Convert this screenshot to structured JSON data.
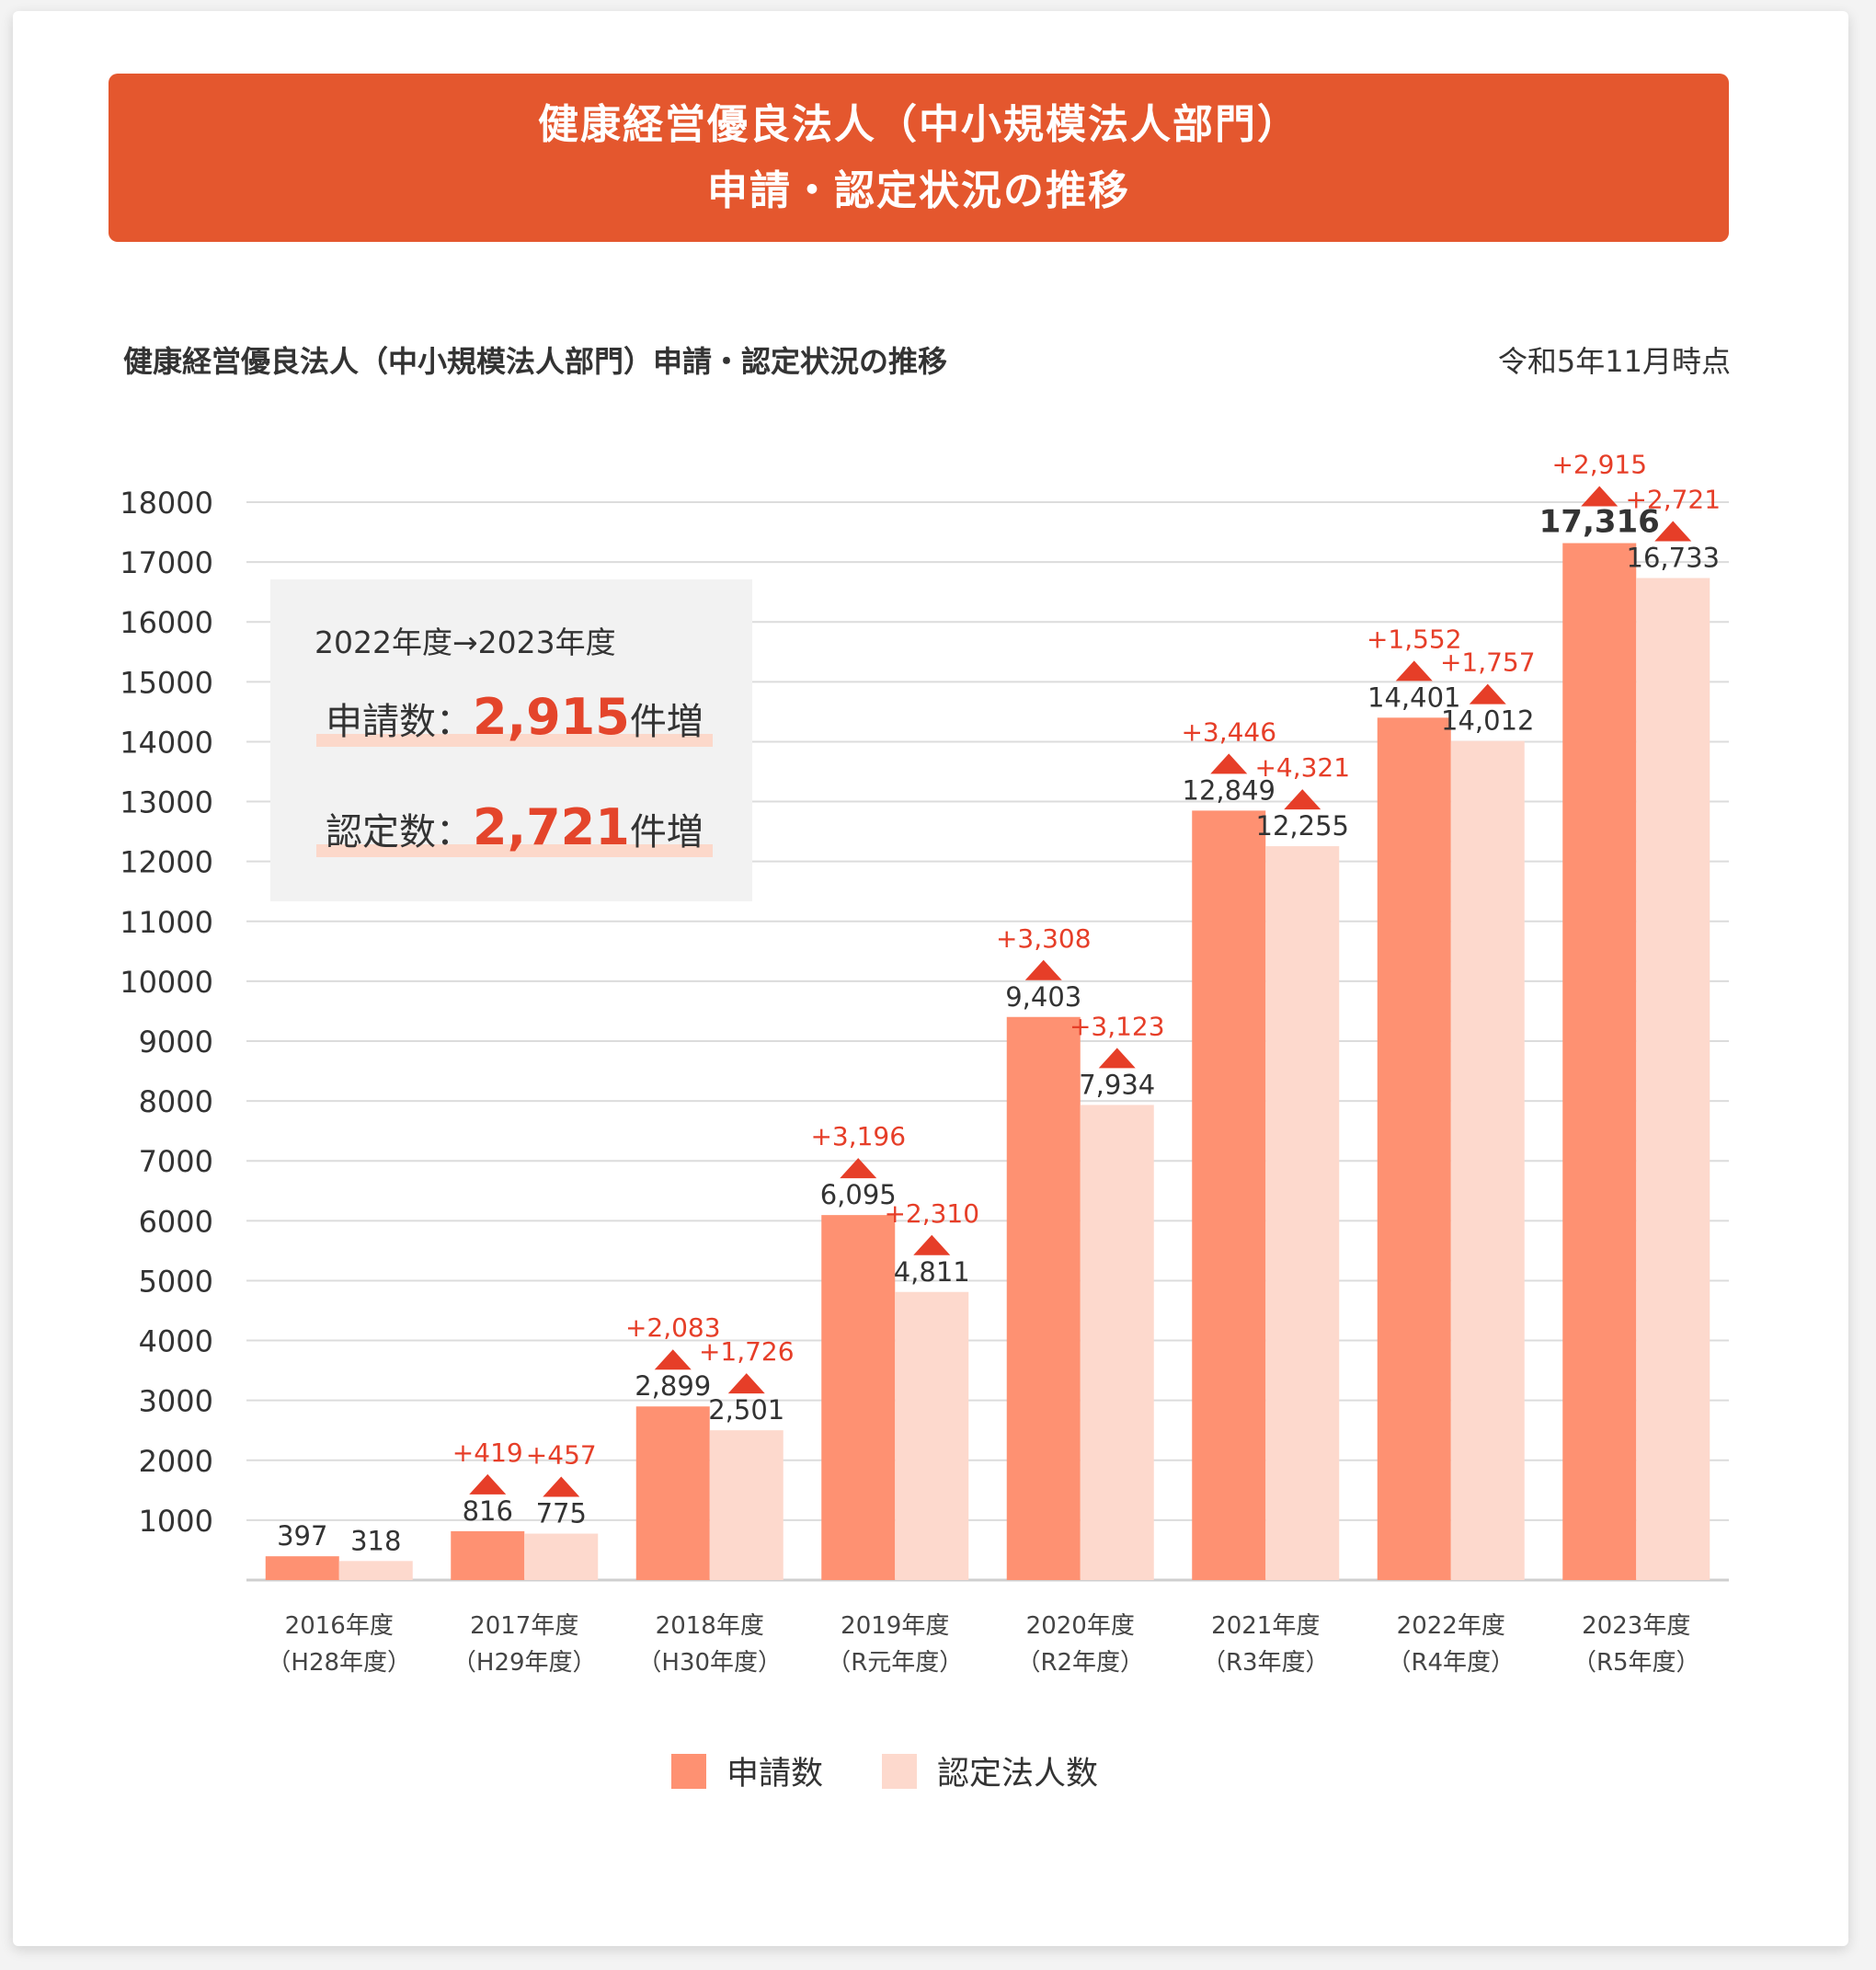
{
  "banner": {
    "line1": "健康経営優良法人（中小規模法人部門）",
    "line2": "申請・認定状況の推移"
  },
  "header": {
    "chart_title": "健康経営優良法人（中小規模法人部門）申請・認定状況の推移",
    "as_of": "令和5年11月時点"
  },
  "summary": {
    "period": "2022年度→2023年度",
    "applications_label": "申請数：",
    "applications_value": "2,915",
    "certified_label": "認定数：",
    "certified_value": "2,721",
    "unit": "件増"
  },
  "colors": {
    "banner": "#e4572e",
    "applications": "#fe9172",
    "certified": "#fdd9cd",
    "increase": "#e63e28"
  },
  "chart_data": {
    "type": "bar",
    "title": "健康経営優良法人（中小規模法人部門）申請・認定状況の推移",
    "xlabel": "",
    "ylabel": "",
    "ylim": [
      0,
      18000
    ],
    "yticks": [
      1000,
      2000,
      3000,
      4000,
      5000,
      6000,
      7000,
      8000,
      9000,
      10000,
      11000,
      12000,
      13000,
      14000,
      15000,
      16000,
      17000,
      18000
    ],
    "grid": true,
    "legend": "bottom",
    "categories": [
      [
        "2016年度",
        "（H28年度）"
      ],
      [
        "2017年度",
        "（H29年度）"
      ],
      [
        "2018年度",
        "（H30年度）"
      ],
      [
        "2019年度",
        "（R元年度）"
      ],
      [
        "2020年度",
        "（R2年度）"
      ],
      [
        "2021年度",
        "（R3年度）"
      ],
      [
        "2022年度",
        "（R4年度）"
      ],
      [
        "2023年度",
        "（R5年度）"
      ]
    ],
    "series": [
      {
        "name": "申請数",
        "color": "#fe9172",
        "values": [
          397,
          816,
          2899,
          6095,
          9403,
          12849,
          14401,
          17316
        ],
        "labels": [
          "397",
          "816",
          "2,899",
          "6,095",
          "9,403",
          "12,849",
          "14,401",
          "17,316"
        ],
        "increase_labels": [
          "",
          "+419",
          "+2,083",
          "+3,196",
          "+3,308",
          "+3,446",
          "+1,552",
          "+2,915"
        ]
      },
      {
        "name": "認定法人数",
        "color": "#fdd9cd",
        "values": [
          318,
          775,
          2501,
          4811,
          7934,
          12255,
          14012,
          16733
        ],
        "labels": [
          "318",
          "775",
          "2,501",
          "4,811",
          "7,934",
          "12,255",
          "14,012",
          "16,733"
        ],
        "increase_labels": [
          "",
          "+457",
          "+1,726",
          "+2,310",
          "+3,123",
          "+4,321",
          "+1,757",
          "+2,721"
        ]
      }
    ]
  }
}
